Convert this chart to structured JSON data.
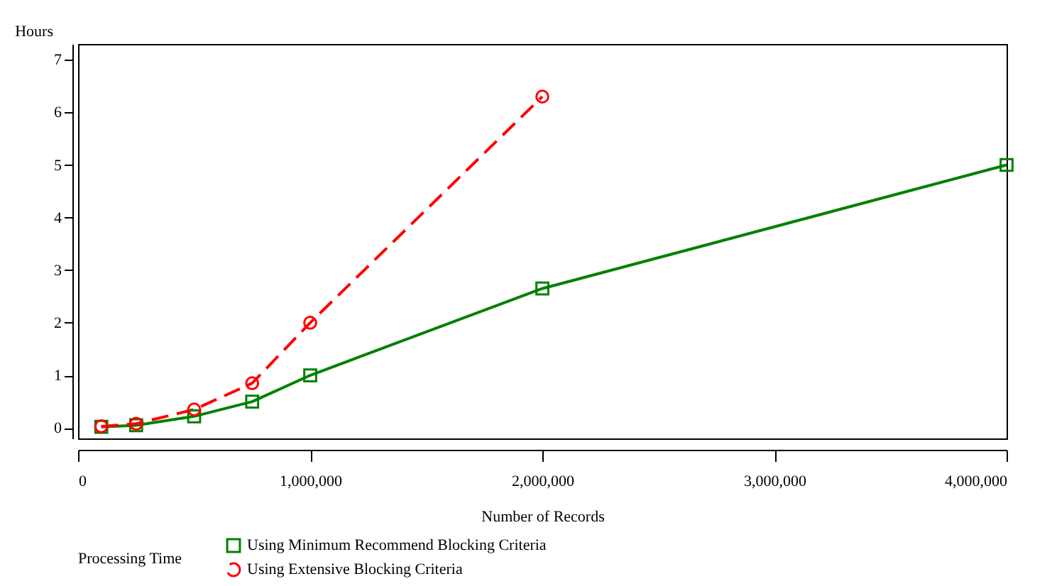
{
  "chart_data": {
    "type": "line",
    "xlabel": "Number of Records",
    "ylabel": "Hours",
    "legend_title": "Processing Time",
    "legend": "bottom",
    "grid": false,
    "x": [
      100000,
      250000,
      500000,
      750000,
      1000000,
      2000000,
      4000000
    ],
    "xlim": [
      0,
      4000000
    ],
    "xticks": [
      {
        "value": 0,
        "label": "0"
      },
      {
        "value": 1000000,
        "label": "1,000,000"
      },
      {
        "value": 2000000,
        "label": "2,000,000"
      },
      {
        "value": 3000000,
        "label": "3,000,000"
      },
      {
        "value": 4000000,
        "label": "4,000,000"
      }
    ],
    "ylim": [
      -0.2,
      7.3
    ],
    "yticks": [
      0,
      1,
      2,
      3,
      4,
      5,
      6,
      7
    ],
    "series": [
      {
        "name": "Using Minimum Recommend Blocking Criteria",
        "color": "#008000",
        "marker": "square",
        "line_style": "solid",
        "values": [
          0.02,
          0.05,
          0.22,
          0.5,
          1.0,
          2.65,
          5.0
        ]
      },
      {
        "name": "Using Extensive Blocking Criteria",
        "color": "#ff0000",
        "marker": "circle",
        "line_style": "dashed",
        "values": [
          0.03,
          0.08,
          0.35,
          0.85,
          2.0,
          6.3,
          null
        ]
      }
    ]
  }
}
